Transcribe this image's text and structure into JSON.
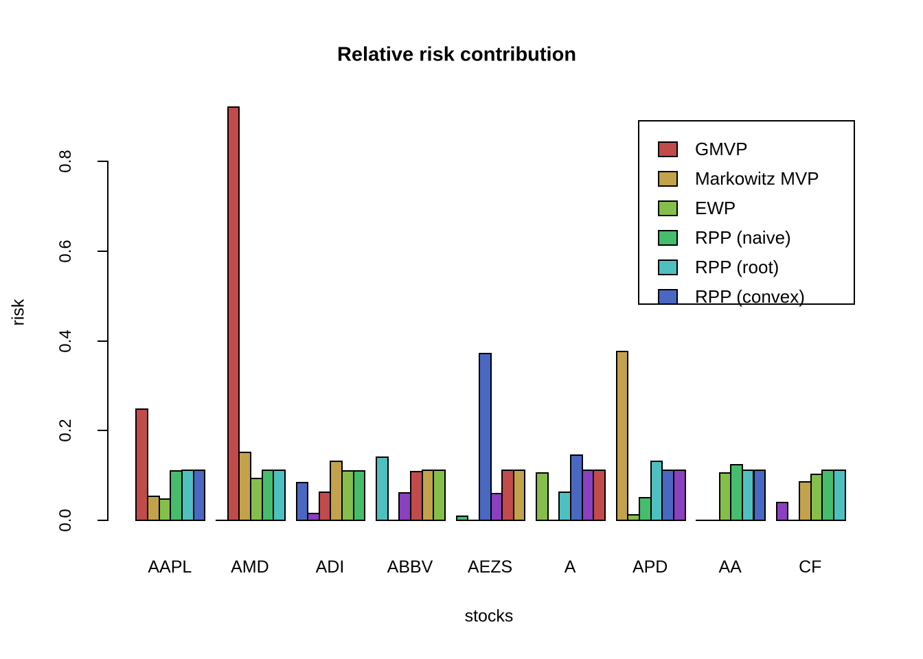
{
  "title": "Relative risk contribution",
  "axes": {
    "x_label": "stocks",
    "y_label": "risk",
    "y_tick_labels": [
      "0.0",
      "0.2",
      "0.4",
      "0.6",
      "0.8"
    ],
    "y_tick_values": [
      0.0,
      0.2,
      0.4,
      0.6,
      0.8
    ]
  },
  "legend": {
    "position": "top-right",
    "entries": [
      "GMVP",
      "Markowitz MVP",
      "EWP",
      "RPP (naive)",
      "RPP (root)",
      "RPP (convex)"
    ]
  },
  "chart_data": {
    "type": "bar",
    "grouped": true,
    "title": "Relative risk contribution",
    "xlabel": "stocks",
    "ylabel": "risk",
    "ylim": [
      0,
      0.92
    ],
    "grid": false,
    "categories": [
      "AAPL",
      "AMD",
      "ADI",
      "ABBV",
      "AEZS",
      "A",
      "APD",
      "AA",
      "CF"
    ],
    "series": [
      {
        "name": "GMVP",
        "color": "#C14B4B",
        "values": [
          0.248,
          0.0,
          0.084,
          0.14,
          0.009,
          0.105,
          0.376,
          0.0,
          0.04
        ]
      },
      {
        "name": "Markowitz MVP",
        "color": "#C2A24B",
        "values": [
          0.054,
          0.921,
          0.015,
          0.0,
          0.0,
          0.0,
          0.012,
          0.0,
          0.0
        ]
      },
      {
        "name": "EWP",
        "color": "#85BF4B",
        "values": [
          0.047,
          0.152,
          0.062,
          0.061,
          0.372,
          0.062,
          0.05,
          0.106,
          0.086
        ]
      },
      {
        "name": "RPP (naive)",
        "color": "#45BD6C",
        "values": [
          0.11,
          0.094,
          0.131,
          0.108,
          0.059,
          0.145,
          0.131,
          0.124,
          0.102
        ]
      },
      {
        "name": "RPP (root)",
        "color": "#4FC0C0",
        "values": [
          0.111,
          0.111,
          0.11,
          0.111,
          0.111,
          0.111,
          0.112,
          0.111,
          0.111
        ]
      },
      {
        "name": "RPP (convex)",
        "color": "#4A68C2",
        "values": [
          0.111,
          0.111,
          0.11,
          0.111,
          0.111,
          0.111,
          0.112,
          0.111,
          0.111
        ]
      }
    ],
    "bar_fill_palette": [
      "#C14B4B",
      "#C2A24B",
      "#85BF4B",
      "#45BD6C",
      "#4FC0C0",
      "#4A68C2",
      "#8B40BF"
    ],
    "bar_fill_rule": "fill of bar (group g, slot s) = bar_fill_palette[(g*6+s) % 7]; 7-color palette recycled across all bars, so fills shift by one hue each group while legend shows first six palette colors",
    "bar_border_color": "#000000",
    "legend_position": "top-right"
  }
}
